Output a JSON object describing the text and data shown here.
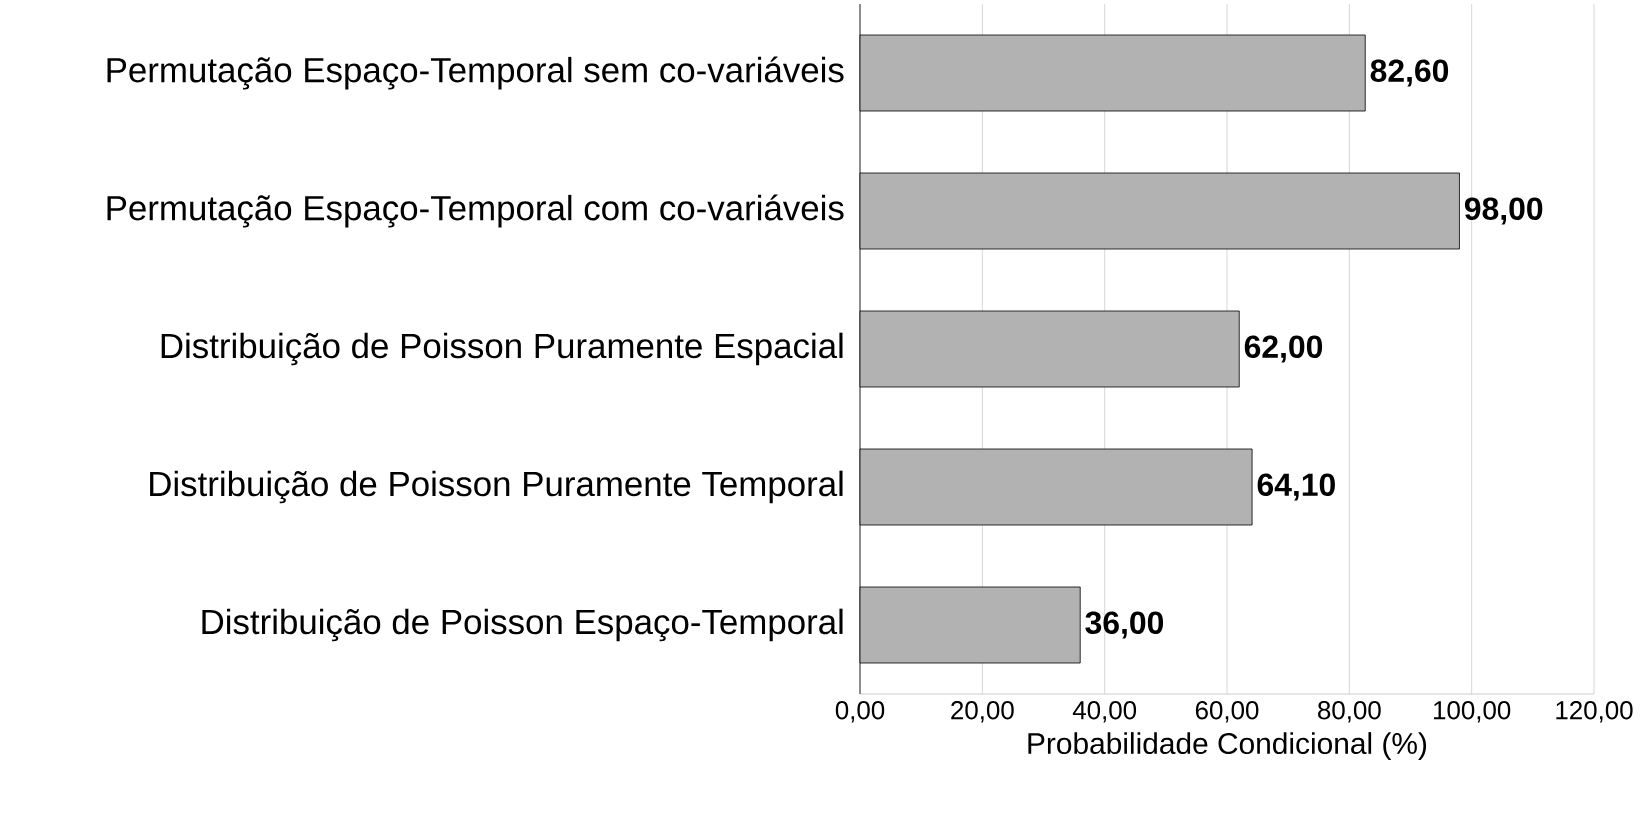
{
  "chart_data": {
    "type": "bar",
    "orientation": "horizontal",
    "xlabel": "Probabilidade Condicional (%)",
    "categories": [
      "Permutação Espaço-Temporal sem co-variáveis",
      "Permutação Espaço-Temporal com co-variáveis",
      "Distribuição de Poisson Puramente Espacial",
      "Distribuição de Poisson Puramente Temporal",
      "Distribuição de Poisson Espaço-Temporal"
    ],
    "values": [
      82.6,
      98,
      62,
      64.1,
      36
    ],
    "value_labels": [
      "82,60",
      "98,00",
      "62,00",
      "64,10",
      "36,00"
    ],
    "color": "#000000",
    "xlim": [
      0,
      120
    ],
    "xticks": [
      {
        "value": 0,
        "label": "0,00"
      },
      {
        "value": 20,
        "label": "20,00"
      },
      {
        "value": 40,
        "label": "40,00"
      },
      {
        "value": 60,
        "label": "60,00"
      },
      {
        "value": 80,
        "label": "80,00"
      },
      {
        "value": 100,
        "label": "100,00"
      },
      {
        "value": 120,
        "label": "120,00"
      }
    ],
    "grid": "x"
  }
}
